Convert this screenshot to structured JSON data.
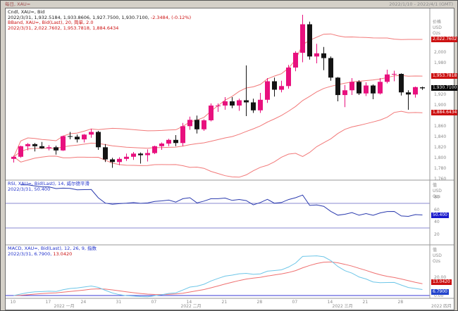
{
  "titlebar": {
    "period_symbol": "每日, XAU=",
    "date_range": "2022/1/10 - 2022/4/1 (GMT)"
  },
  "price_panel": {
    "legend": {
      "line1": "Cndl, XAU=, Bid",
      "ohlc_text": "2022/3/31, 1,932.5184, 1,933.8606, 1,927.7500, 1,930.7100,",
      "change_text": " -2.3484, (-0.12%)",
      "line3": "BBand, XAU=, Bid(Last), 20, 简单, 2.0",
      "line4": "2022/3/31, 2,022.7602, 1,953.7818, 1,884.6434"
    },
    "axis": {
      "title": [
        "价格",
        "USD",
        "Ozs"
      ],
      "ticks": [
        {
          "text": "2,000",
          "value": 2000
        },
        {
          "text": "1,980",
          "value": 1980
        },
        {
          "text": "1,920",
          "value": 1920
        },
        {
          "text": "1,900",
          "value": 1900
        },
        {
          "text": "1,860",
          "value": 1860
        },
        {
          "text": "1,840",
          "value": 1840
        },
        {
          "text": "1,820",
          "value": 1820
        },
        {
          "text": "1,800",
          "value": 1800
        },
        {
          "text": "1,780",
          "value": 1780
        },
        {
          "text": "1,760",
          "value": 1760
        }
      ],
      "flags": [
        {
          "text": "2,022.7602",
          "value": 2022.7602,
          "bg": "#cc1111"
        },
        {
          "text": "1,953.7818",
          "value": 1953.7818,
          "bg": "#cc1111"
        },
        {
          "text": "1,930.7100",
          "value": 1930.71,
          "bg": "#000000"
        },
        {
          "text": "1,884.6434",
          "value": 1884.6434,
          "bg": "#cc1111"
        }
      ]
    }
  },
  "rsi_panel": {
    "legend": {
      "line1": "RSI, XAU=, Bid(Last), 14, 威尔德平滑",
      "line2": "2022/3/31, 50.400"
    },
    "axis": {
      "title": [
        "值",
        "USD",
        "Ozs"
      ],
      "ticks": [
        {
          "text": "80",
          "value": 80
        },
        {
          "text": "60",
          "value": 60
        },
        {
          "text": "40",
          "value": 40
        },
        {
          "text": "20",
          "value": 20
        }
      ],
      "flags": [
        {
          "text": "50.400",
          "value": 50.4,
          "bg": "#1a1acc"
        }
      ]
    }
  },
  "macd_panel": {
    "legend": {
      "line1": "MACD, XAU=, Bid(Last), 12, 26, 9, 指数",
      "values_blue": "2022/3/31, 6.7900,",
      "values_red": " 13.0420"
    },
    "axis": {
      "title": [
        "值",
        "USD",
        "Ozs"
      ],
      "ticks": [
        {
          "text": "20.00",
          "value": 20
        },
        {
          "text": "0.00",
          "value": 0
        }
      ],
      "flags": [
        {
          "text": "13.0420",
          "value": 13.042,
          "bg": "#cc1111"
        },
        {
          "text": "6.7900",
          "value": 6.79,
          "bg": "#2244cc"
        }
      ]
    }
  },
  "time_axis": {
    "months": [
      "2022 一月",
      "2022 二月",
      "2022 三月"
    ],
    "bottom_right": "2022 四月"
  },
  "chart_data": [
    {
      "type": "candlestick",
      "title": "Cndl, XAU=, Bid (daily) with BBand(20, simple, 2.0) overlay",
      "ylim": [
        1760,
        2082
      ],
      "up_color": "#e8107e",
      "down_color": "#141414",
      "band_color": "#f27979",
      "x_dates": [
        "2022-01-10",
        "2022-01-11",
        "2022-01-12",
        "2022-01-13",
        "2022-01-14",
        "2022-01-17",
        "2022-01-18",
        "2022-01-19",
        "2022-01-20",
        "2022-01-21",
        "2022-01-24",
        "2022-01-25",
        "2022-01-26",
        "2022-01-27",
        "2022-01-28",
        "2022-01-31",
        "2022-02-01",
        "2022-02-02",
        "2022-02-03",
        "2022-02-04",
        "2022-02-07",
        "2022-02-08",
        "2022-02-09",
        "2022-02-10",
        "2022-02-11",
        "2022-02-14",
        "2022-02-15",
        "2022-02-16",
        "2022-02-17",
        "2022-02-18",
        "2022-02-21",
        "2022-02-22",
        "2022-02-23",
        "2022-02-24",
        "2022-02-25",
        "2022-02-28",
        "2022-03-01",
        "2022-03-02",
        "2022-03-03",
        "2022-03-04",
        "2022-03-07",
        "2022-03-08",
        "2022-03-09",
        "2022-03-10",
        "2022-03-11",
        "2022-03-14",
        "2022-03-15",
        "2022-03-16",
        "2022-03-17",
        "2022-03-18",
        "2022-03-21",
        "2022-03-22",
        "2022-03-23",
        "2022-03-24",
        "2022-03-25",
        "2022-03-28",
        "2022-03-29",
        "2022-03-30",
        "2022-03-31"
      ],
      "ohlc": [
        [
          1797,
          1803,
          1790,
          1801
        ],
        [
          1801,
          1822,
          1799,
          1821
        ],
        [
          1821,
          1827,
          1813,
          1825
        ],
        [
          1825,
          1827,
          1811,
          1821
        ],
        [
          1821,
          1829,
          1816,
          1817
        ],
        [
          1817,
          1823,
          1813,
          1819
        ],
        [
          1819,
          1822,
          1805,
          1813
        ],
        [
          1813,
          1841,
          1812,
          1840
        ],
        [
          1840,
          1848,
          1834,
          1839
        ],
        [
          1839,
          1843,
          1828,
          1834
        ],
        [
          1834,
          1844,
          1828,
          1843
        ],
        [
          1843,
          1854,
          1837,
          1848
        ],
        [
          1848,
          1850,
          1814,
          1819
        ],
        [
          1819,
          1825,
          1791,
          1796
        ],
        [
          1796,
          1799,
          1780,
          1791
        ],
        [
          1791,
          1800,
          1785,
          1797
        ],
        [
          1797,
          1807,
          1793,
          1801
        ],
        [
          1801,
          1810,
          1795,
          1807
        ],
        [
          1807,
          1809,
          1788,
          1804
        ],
        [
          1804,
          1815,
          1792,
          1808
        ],
        [
          1808,
          1822,
          1806,
          1821
        ],
        [
          1821,
          1828,
          1814,
          1826
        ],
        [
          1826,
          1835,
          1821,
          1833
        ],
        [
          1833,
          1842,
          1821,
          1827
        ],
        [
          1827,
          1865,
          1821,
          1859
        ],
        [
          1859,
          1877,
          1852,
          1871
        ],
        [
          1871,
          1879,
          1845,
          1853
        ],
        [
          1853,
          1872,
          1850,
          1870
        ],
        [
          1870,
          1902,
          1868,
          1898
        ],
        [
          1898,
          1902,
          1886,
          1898
        ],
        [
          1898,
          1914,
          1890,
          1906
        ],
        [
          1906,
          1914,
          1893,
          1898
        ],
        [
          1898,
          1911,
          1888,
          1908
        ],
        [
          1908,
          1974,
          1878,
          1904
        ],
        [
          1904,
          1911,
          1884,
          1889
        ],
        [
          1889,
          1922,
          1884,
          1909
        ],
        [
          1909,
          1950,
          1903,
          1944
        ],
        [
          1944,
          1951,
          1915,
          1928
        ],
        [
          1928,
          1945,
          1923,
          1935
        ],
        [
          1935,
          1975,
          1930,
          1970
        ],
        [
          1970,
          2001,
          1963,
          1998
        ],
        [
          1998,
          2070,
          1980,
          2052
        ],
        [
          2052,
          2057,
          1985,
          1991
        ],
        [
          1991,
          2015,
          1978,
          1997
        ],
        [
          1997,
          2009,
          1965,
          1988
        ],
        [
          1988,
          1991,
          1945,
          1951
        ],
        [
          1951,
          1952,
          1906,
          1918
        ],
        [
          1918,
          1937,
          1895,
          1927
        ],
        [
          1927,
          1950,
          1918,
          1943
        ],
        [
          1943,
          1946,
          1918,
          1921
        ],
        [
          1921,
          1942,
          1916,
          1936
        ],
        [
          1936,
          1938,
          1910,
          1921
        ],
        [
          1921,
          1950,
          1919,
          1943
        ],
        [
          1943,
          1966,
          1940,
          1957
        ],
        [
          1957,
          1964,
          1944,
          1958
        ],
        [
          1958,
          1959,
          1917,
          1923
        ],
        [
          1923,
          1927,
          1890,
          1919
        ],
        [
          1919,
          1934,
          1913,
          1933
        ],
        [
          1932.52,
          1933.86,
          1927.75,
          1930.71
        ]
      ],
      "overlay_last_values": {
        "upper": 2022.7602,
        "middle": 1953.7818,
        "lower": 1884.6434
      }
    },
    {
      "type": "line",
      "title": "RSI(14, Wilder smoothing) of close",
      "levels": [
        30,
        70
      ],
      "last_value": 50.4,
      "line_color": "#2a3aae",
      "level_color": "#8a8ad0",
      "ylim": [
        0,
        100
      ]
    },
    {
      "type": "line",
      "title": "MACD(12, 26, 9, exponential) of close",
      "last_macd": 6.79,
      "last_signal": 13.042,
      "macd_color": "#6ec6e8",
      "signal_color": "#ef7070",
      "zero_line_color": "#3a3ad6"
    }
  ]
}
